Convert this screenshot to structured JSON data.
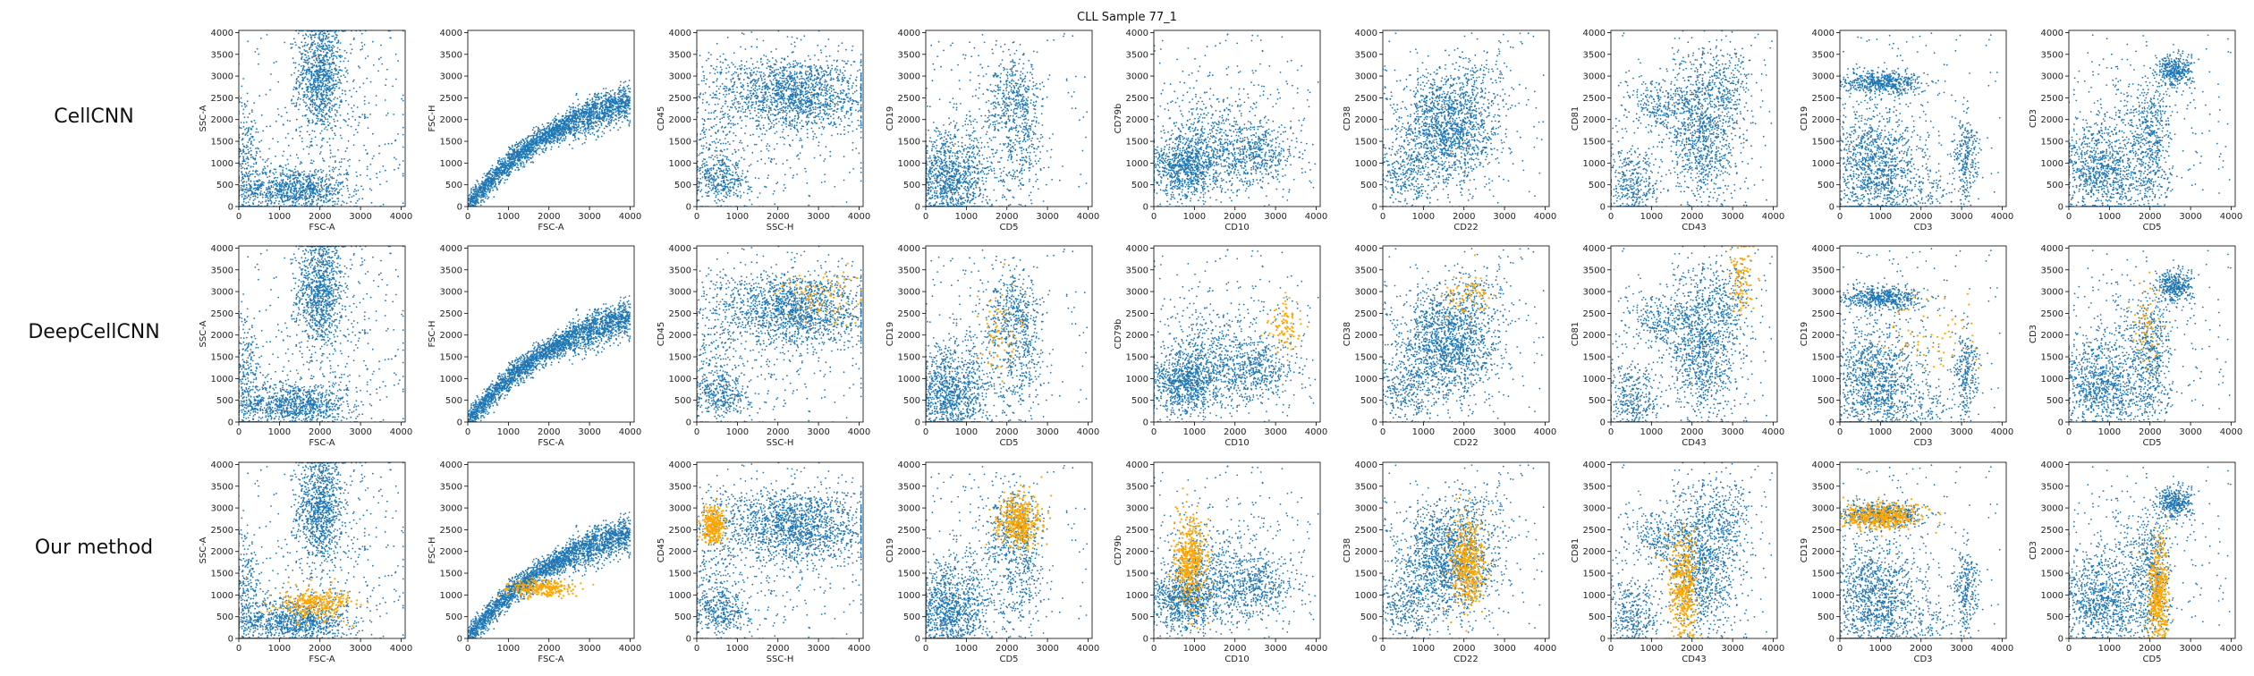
{
  "title": "CLL Sample 77_1",
  "row_labels": [
    "CellCNN",
    "DeepCellCNN",
    "Our method"
  ],
  "colors": {
    "background_cells": "#1f77b4",
    "selected_cells": "#ffa500"
  },
  "chart_data": {
    "type": "scatter",
    "title": "CLL Sample 77_1",
    "rows": [
      "CellCNN",
      "DeepCellCNN",
      "Our method"
    ],
    "xlim": [
      0,
      4100
    ],
    "ylim": [
      0,
      4050
    ],
    "xticks": [
      0,
      1000,
      2000,
      3000,
      4000
    ],
    "yticks": [
      0,
      500,
      1000,
      1500,
      2000,
      2500,
      3000,
      3500,
      4000
    ],
    "grid": false,
    "legend": "none",
    "panels": [
      {
        "xlabel": "FSC-A",
        "ylabel": "SSC-A"
      },
      {
        "xlabel": "FSC-A",
        "ylabel": "FSC-H"
      },
      {
        "xlabel": "SSC-H",
        "ylabel": "CD45"
      },
      {
        "xlabel": "CD5",
        "ylabel": "CD19"
      },
      {
        "xlabel": "CD10",
        "ylabel": "CD79b"
      },
      {
        "xlabel": "CD22",
        "ylabel": "CD38"
      },
      {
        "xlabel": "CD43",
        "ylabel": "CD81"
      },
      {
        "xlabel": "CD3",
        "ylabel": "CD19"
      },
      {
        "xlabel": "CD5",
        "ylabel": "CD3"
      }
    ],
    "highlight_clusters": [
      [],
      [
        {
          "panel": 2,
          "cx": 3100,
          "cy": 2900,
          "sx": 500,
          "sy": 300,
          "n": 90
        },
        {
          "panel": 3,
          "cx": 1800,
          "cy": 2000,
          "sx": 250,
          "sy": 500,
          "n": 70
        },
        {
          "panel": 4,
          "cx": 3300,
          "cy": 2200,
          "sx": 200,
          "sy": 300,
          "n": 90
        },
        {
          "panel": 5,
          "cx": 2100,
          "cy": 2900,
          "sx": 300,
          "sy": 250,
          "n": 70
        },
        {
          "panel": 6,
          "cx": 3200,
          "cy": 3300,
          "sx": 150,
          "sy": 450,
          "n": 90
        },
        {
          "panel": 7,
          "cx": 2300,
          "cy": 2000,
          "sx": 700,
          "sy": 500,
          "n": 60
        },
        {
          "panel": 8,
          "cx": 1900,
          "cy": 2200,
          "sx": 200,
          "sy": 500,
          "n": 60
        }
      ],
      [
        {
          "panel": 0,
          "cx": 1900,
          "cy": 800,
          "sx": 450,
          "sy": 180,
          "n": 300
        },
        {
          "panel": 1,
          "cx": 1800,
          "cy": 1150,
          "sx": 350,
          "sy": 100,
          "n": 250
        },
        {
          "panel": 2,
          "cx": 400,
          "cy": 2600,
          "sx": 150,
          "sy": 200,
          "n": 300
        },
        {
          "panel": 3,
          "cx": 2300,
          "cy": 2700,
          "sx": 280,
          "sy": 300,
          "n": 400
        },
        {
          "panel": 4,
          "cx": 900,
          "cy": 1800,
          "sx": 200,
          "sy": 500,
          "n": 450
        },
        {
          "panel": 5,
          "cx": 2100,
          "cy": 1700,
          "sx": 200,
          "sy": 500,
          "n": 450
        },
        {
          "panel": 6,
          "cx": 1800,
          "cy": 1200,
          "sx": 180,
          "sy": 600,
          "n": 400
        },
        {
          "panel": 7,
          "cx": 1000,
          "cy": 2800,
          "sx": 500,
          "sy": 150,
          "n": 450
        },
        {
          "panel": 8,
          "cx": 2200,
          "cy": 1000,
          "sx": 130,
          "sy": 600,
          "n": 400
        }
      ]
    ]
  }
}
